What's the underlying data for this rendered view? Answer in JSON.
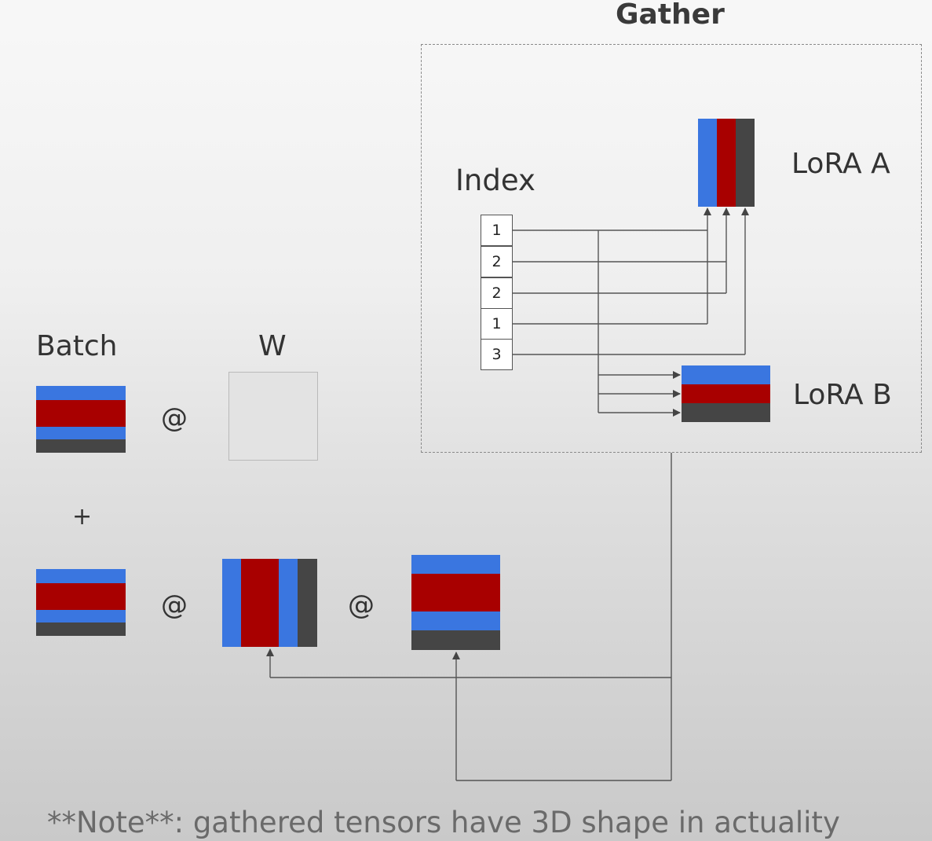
{
  "title": "Gather",
  "index": {
    "label": "Index",
    "values": [
      "1",
      "2",
      "2",
      "1",
      "3"
    ]
  },
  "lora_a": {
    "label": "LoRA A"
  },
  "lora_b": {
    "label": "LoRA B"
  },
  "batch": {
    "label": "Batch"
  },
  "weight": {
    "label": "W"
  },
  "operators": {
    "matmul": "@",
    "plus": "+"
  },
  "note": "**Note**: gathered tensors have 3D shape in actuality",
  "colors": {
    "blue": "#3a76e0",
    "red": "#a80000",
    "dark": "#454545",
    "wire": "#555555",
    "dashed_border": "#8a8a8a",
    "weight_fill": "#e3e3e3"
  }
}
